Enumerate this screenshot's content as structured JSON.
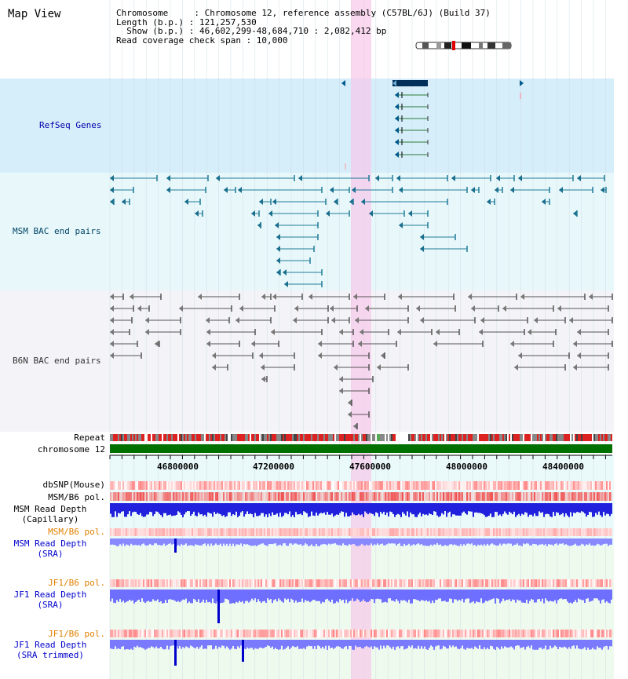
{
  "title": "Map View",
  "info": {
    "chromosome_line": "Chromosome     : Chromosome 12, reference assembly (C57BL/6J) (Build 37)",
    "length_line": "Length (b.p.) : 121,257,530",
    "show_line": "  Show (b.p.) : 46,602,299-48,684,710 : 2,082,412 bp",
    "coverage_line": "Read coverage check span : 10,000"
  },
  "tracks": {
    "refseq": "RefSeq Genes",
    "msm_bac": "MSM BAC end pairs",
    "b6n_bac": "B6N BAC end pairs",
    "repeat": "Repeat",
    "chromosome": "chromosome 12",
    "dbsnp": "dbSNP(Mouse)",
    "msm_b6_pol": "MSM/B6 pol.",
    "msm_depth_cap_1": "MSM Read Depth",
    "msm_depth_cap_2": "(Capillary)",
    "msm_b6_pol_2": "MSM/B6 pol.",
    "msm_depth_sra_1": "MSM Read Depth",
    "msm_depth_sra_2": "(SRA)",
    "jf1_b6_pol": "JF1/B6 pol.",
    "jf1_depth_sra_1": "JF1 Read Depth",
    "jf1_depth_sra_2": "(SRA)",
    "jf1_b6_pol_2": "JF1/B6 pol.",
    "jf1_depth_trim_1": "JF1 Read Depth",
    "jf1_depth_trim_2": "(SRA trimmed)"
  },
  "scale": [
    "46800000",
    "47200000",
    "47600000",
    "48000000",
    "48400000"
  ],
  "colors": {
    "refseq": "#005a8c",
    "msm_bac": "#1f7a99",
    "b6n_bac": "#555555",
    "chromosome": "#007000",
    "highlight": "#f7c8ea",
    "depth": "#6666ff",
    "depth_dark": "#0000cc"
  }
}
